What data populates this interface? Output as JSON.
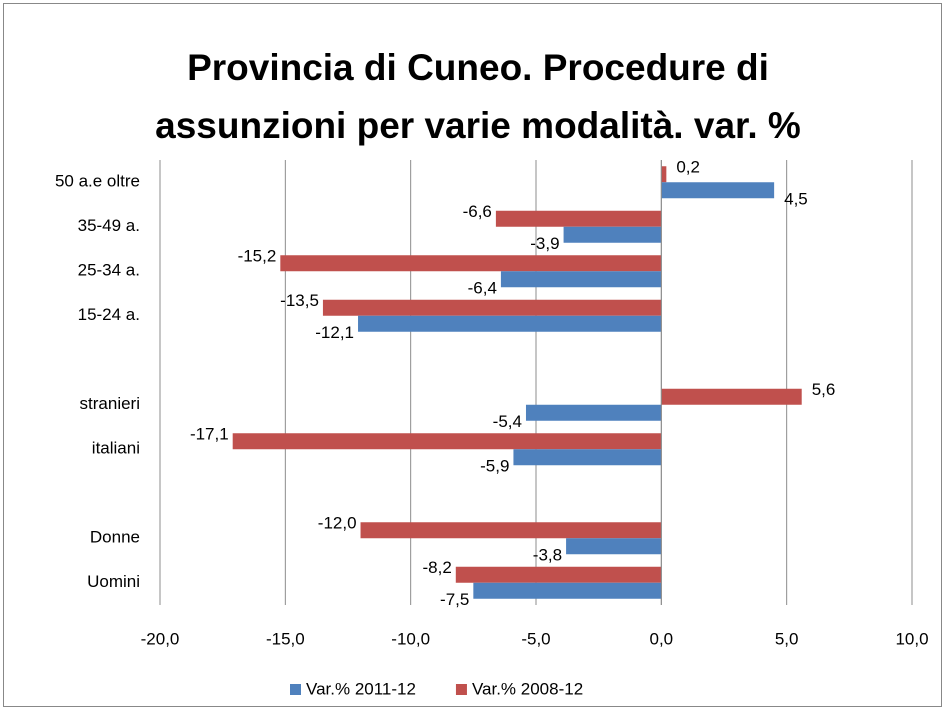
{
  "chart_data": {
    "type": "hbar",
    "title": [
      "Provincia di Cuneo. Procedure di",
      "assunzioni per varie modalità. var. %"
    ],
    "categories": [
      "50 a.e oltre",
      "35-49 a.",
      "25-34 a.",
      "15-24 a.",
      null,
      "stranieri",
      "italiani",
      null,
      "Donne",
      "Uomini"
    ],
    "series": [
      {
        "name": "Var.% 2011-12",
        "color": "#4f81bd",
        "values": [
          4.5,
          -3.9,
          -6.4,
          -12.1,
          null,
          -5.4,
          -5.9,
          null,
          -3.8,
          -7.5
        ],
        "value_labels": [
          "4,5",
          "-3,9",
          "-6,4",
          "-12,1",
          null,
          "-5,4",
          "-5,9",
          null,
          "-3,8",
          "-7,5"
        ]
      },
      {
        "name": "Var.% 2008-12",
        "color": "#c0504d",
        "values": [
          0.2,
          -6.6,
          -15.2,
          -13.5,
          null,
          5.6,
          -17.1,
          null,
          -12.0,
          -8.2
        ],
        "value_labels": [
          "0,2",
          "-6,6",
          "-15,2",
          "-13,5",
          null,
          "5,6",
          "-17,1",
          null,
          "-12,0",
          "-8,2"
        ]
      }
    ],
    "xlim": [
      -20,
      10
    ],
    "xticks": [
      {
        "value": -20,
        "label": "-20,0"
      },
      {
        "value": -15,
        "label": "-15,0"
      },
      {
        "value": -10,
        "label": "-10,0"
      },
      {
        "value": -5,
        "label": "-5,0"
      },
      {
        "value": 0,
        "label": "0,0"
      },
      {
        "value": 5,
        "label": "5,0"
      },
      {
        "value": 10,
        "label": "10,0"
      }
    ],
    "grid": true,
    "legend": "bottom"
  }
}
